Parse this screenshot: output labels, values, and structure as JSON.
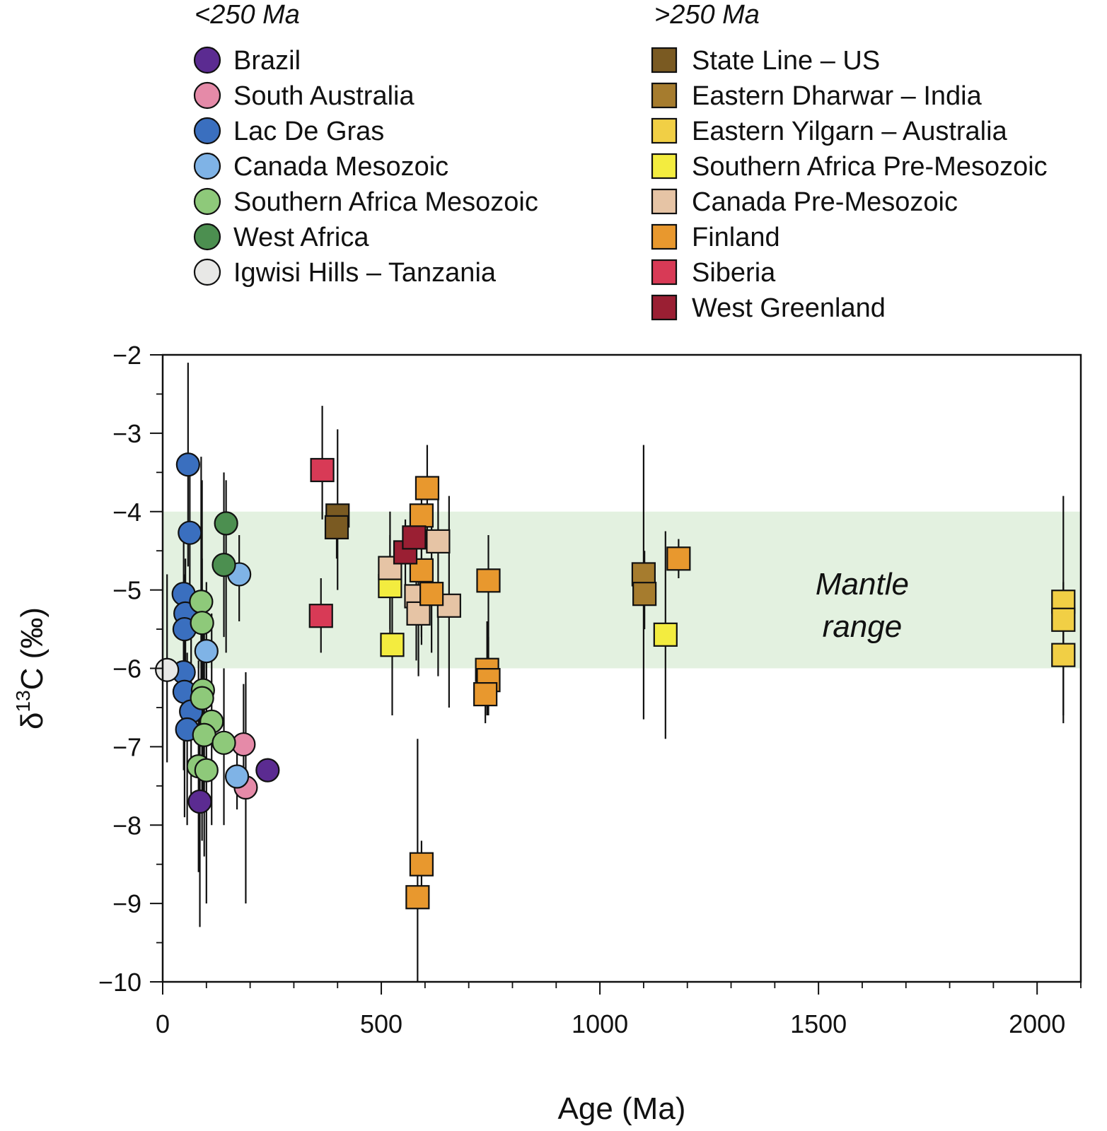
{
  "chart_data": {
    "type": "scatter",
    "xlabel": "Age (Ma)",
    "ylabel_base": "δ",
    "ylabel_sup": "13",
    "ylabel_rest": "C (‰)",
    "xlim": [
      0,
      2100
    ],
    "ylim": [
      -10,
      -2
    ],
    "x_ticks": [
      0,
      500,
      1000,
      1500,
      2000
    ],
    "y_ticks": [
      -2,
      -3,
      -4,
      -5,
      -6,
      -7,
      -8,
      -9,
      -10
    ],
    "y_tick_labels": [
      "−2",
      "−3",
      "−4",
      "−5",
      "−6",
      "−7",
      "−8",
      "−9",
      "−10"
    ],
    "grid": false,
    "band": {
      "y_from": -6,
      "y_to": -4,
      "color": "#e3f1e0",
      "label_line1": "Mantle",
      "label_line2": "range",
      "label_x": 1600,
      "label_y": -5.2
    },
    "legend_groups": [
      {
        "title": "<250 Ma",
        "marker": "circle",
        "placement": "top-left"
      },
      {
        "title": ">250 Ma",
        "marker": "square",
        "placement": "top-right"
      }
    ],
    "series": [
      {
        "name": "Brazil",
        "group": 0,
        "marker": "circle",
        "color": "#5b2b91",
        "points": [
          {
            "x": 85,
            "y": -7.7,
            "lo": -9.3,
            "hi": -6.4
          },
          {
            "x": 240,
            "y": -7.3,
            "lo": -7.3,
            "hi": -7.3
          }
        ]
      },
      {
        "name": "South Australia",
        "group": 0,
        "marker": "circle",
        "color": "#e58aa8",
        "points": [
          {
            "x": 185,
            "y": -6.97,
            "lo": -7.6,
            "hi": -6.2
          },
          {
            "x": 190,
            "y": -7.52,
            "lo": -9.0,
            "hi": -6.05
          }
        ]
      },
      {
        "name": "Lac De Gras",
        "group": 0,
        "marker": "circle",
        "color": "#3a6fbf",
        "points": [
          {
            "x": 58,
            "y": -3.4,
            "lo": -4.7,
            "hi": -2.1
          },
          {
            "x": 62,
            "y": -4.27,
            "lo": -5.6,
            "hi": -3.3
          },
          {
            "x": 48,
            "y": -5.05,
            "lo": -6.2,
            "hi": -4.3
          },
          {
            "x": 52,
            "y": -5.3,
            "lo": -6.8,
            "hi": -4.6
          },
          {
            "x": 50,
            "y": -5.5,
            "lo": -7.0,
            "hi": -4.8
          },
          {
            "x": 48,
            "y": -6.05,
            "lo": -7.3,
            "hi": -5.0
          },
          {
            "x": 50,
            "y": -6.3,
            "lo": -7.9,
            "hi": -5.2
          },
          {
            "x": 65,
            "y": -6.55,
            "lo": -7.7,
            "hi": -5.5
          },
          {
            "x": 56,
            "y": -6.78,
            "lo": -8.0,
            "hi": -5.8
          }
        ]
      },
      {
        "name": "Canada Mesozoic",
        "group": 0,
        "marker": "circle",
        "color": "#7fb3e6",
        "points": [
          {
            "x": 175,
            "y": -4.8,
            "lo": -5.4,
            "hi": -4.3
          },
          {
            "x": 100,
            "y": -5.78,
            "lo": -6.9,
            "hi": -4.9
          },
          {
            "x": 170,
            "y": -7.38,
            "lo": -7.8,
            "hi": -6.9
          }
        ]
      },
      {
        "name": "Southern Africa Mesozoic",
        "group": 0,
        "marker": "circle",
        "color": "#8ec97a",
        "points": [
          {
            "x": 88,
            "y": -5.15,
            "lo": -7.0,
            "hi": -3.3
          },
          {
            "x": 90,
            "y": -5.42,
            "lo": -7.2,
            "hi": -3.6
          },
          {
            "x": 92,
            "y": -6.28,
            "lo": -7.6,
            "hi": -5.0
          },
          {
            "x": 90,
            "y": -6.38,
            "lo": -8.2,
            "hi": -4.6
          },
          {
            "x": 112,
            "y": -6.68,
            "lo": -8.0,
            "hi": -5.3
          },
          {
            "x": 95,
            "y": -6.85,
            "lo": -8.4,
            "hi": -5.2
          },
          {
            "x": 140,
            "y": -6.95,
            "lo": -8.0,
            "hi": -6.0
          },
          {
            "x": 82,
            "y": -7.25,
            "lo": -8.6,
            "hi": -5.9
          },
          {
            "x": 100,
            "y": -7.3,
            "lo": -9.0,
            "hi": -5.7
          }
        ]
      },
      {
        "name": "West Africa",
        "group": 0,
        "marker": "circle",
        "color": "#4c8f50",
        "points": [
          {
            "x": 145,
            "y": -4.15,
            "lo": -5.8,
            "hi": -3.6
          },
          {
            "x": 140,
            "y": -4.68,
            "lo": -5.6,
            "hi": -3.5
          }
        ]
      },
      {
        "name": "Igwisi Hills – Tanzania",
        "group": 0,
        "marker": "circle",
        "color": "#e8e8e6",
        "points": [
          {
            "x": 10,
            "y": -6.02,
            "lo": -7.2,
            "hi": -4.8
          }
        ]
      },
      {
        "name": "State Line – US",
        "group": 1,
        "marker": "square",
        "color": "#7a5a22",
        "points": [
          {
            "x": 400,
            "y": -4.05,
            "lo": -5.0,
            "hi": -2.95
          },
          {
            "x": 398,
            "y": -4.2,
            "lo": -4.6,
            "hi": -3.9
          }
        ]
      },
      {
        "name": "Eastern Dharwar – India",
        "group": 1,
        "marker": "square",
        "color": "#a67c2e",
        "points": [
          {
            "x": 1100,
            "y": -4.8,
            "lo": -6.65,
            "hi": -3.15
          },
          {
            "x": 1102,
            "y": -5.05,
            "lo": -5.5,
            "hi": -4.5
          }
        ]
      },
      {
        "name": "Eastern Yilgarn – Australia",
        "group": 1,
        "marker": "square",
        "color": "#f1cf45",
        "points": [
          {
            "x": 2060,
            "y": -5.15,
            "lo": -5.9,
            "hi": -3.8
          },
          {
            "x": 2060,
            "y": -5.38,
            "lo": -6.7,
            "hi": -4.9
          },
          {
            "x": 2060,
            "y": -5.83,
            "lo": -6.6,
            "hi": -5.4
          }
        ]
      },
      {
        "name": "Southern Africa Pre-Mesozoic",
        "group": 1,
        "marker": "square",
        "color": "#f3ec3f",
        "points": [
          {
            "x": 520,
            "y": -4.95,
            "lo": -5.6,
            "hi": -4.3
          },
          {
            "x": 525,
            "y": -5.7,
            "lo": -6.6,
            "hi": -4.7
          },
          {
            "x": 1150,
            "y": -5.57,
            "lo": -6.9,
            "hi": -4.25
          }
        ]
      },
      {
        "name": "Canada Pre-Mesozoic",
        "group": 1,
        "marker": "square",
        "color": "#e6c4a5",
        "points": [
          {
            "x": 520,
            "y": -4.72,
            "lo": -5.5,
            "hi": -4.0
          },
          {
            "x": 580,
            "y": -5.08,
            "lo": -5.9,
            "hi": -4.3
          },
          {
            "x": 585,
            "y": -5.3,
            "lo": -6.1,
            "hi": -4.6
          },
          {
            "x": 630,
            "y": -4.38,
            "lo": -6.1,
            "hi": -3.7
          },
          {
            "x": 655,
            "y": -5.2,
            "lo": -6.5,
            "hi": -3.8
          }
        ]
      },
      {
        "name": "Finland",
        "group": 1,
        "marker": "square",
        "color": "#e8982e",
        "points": [
          {
            "x": 605,
            "y": -3.7,
            "lo": -4.3,
            "hi": -3.15
          },
          {
            "x": 592,
            "y": -4.05,
            "lo": -5.6,
            "hi": -3.6
          },
          {
            "x": 592,
            "y": -4.75,
            "lo": -5.7,
            "hi": -4.0
          },
          {
            "x": 615,
            "y": -5.05,
            "lo": -5.8,
            "hi": -4.0
          },
          {
            "x": 745,
            "y": -4.88,
            "lo": -6.4,
            "hi": -4.3
          },
          {
            "x": 742,
            "y": -6.02,
            "lo": -6.6,
            "hi": -5.4
          },
          {
            "x": 745,
            "y": -6.15,
            "lo": -6.6,
            "hi": -5.6
          },
          {
            "x": 738,
            "y": -6.33,
            "lo": -6.7,
            "hi": -5.9
          },
          {
            "x": 592,
            "y": -8.5,
            "lo": -8.8,
            "hi": -8.2
          },
          {
            "x": 583,
            "y": -8.92,
            "lo": -10.0,
            "hi": -6.9
          },
          {
            "x": 1180,
            "y": -4.6,
            "lo": -4.85,
            "hi": -4.35
          }
        ]
      },
      {
        "name": "Siberia",
        "group": 1,
        "marker": "square",
        "color": "#d83a56",
        "points": [
          {
            "x": 365,
            "y": -3.47,
            "lo": -4.1,
            "hi": -2.65
          },
          {
            "x": 362,
            "y": -5.33,
            "lo": -5.8,
            "hi": -4.85
          }
        ]
      },
      {
        "name": "West Greenland",
        "group": 1,
        "marker": "square",
        "color": "#9a1f33",
        "points": [
          {
            "x": 555,
            "y": -4.52,
            "lo": -5.0,
            "hi": -4.1
          },
          {
            "x": 575,
            "y": -4.33,
            "lo": -4.8,
            "hi": -3.9
          }
        ]
      }
    ]
  }
}
